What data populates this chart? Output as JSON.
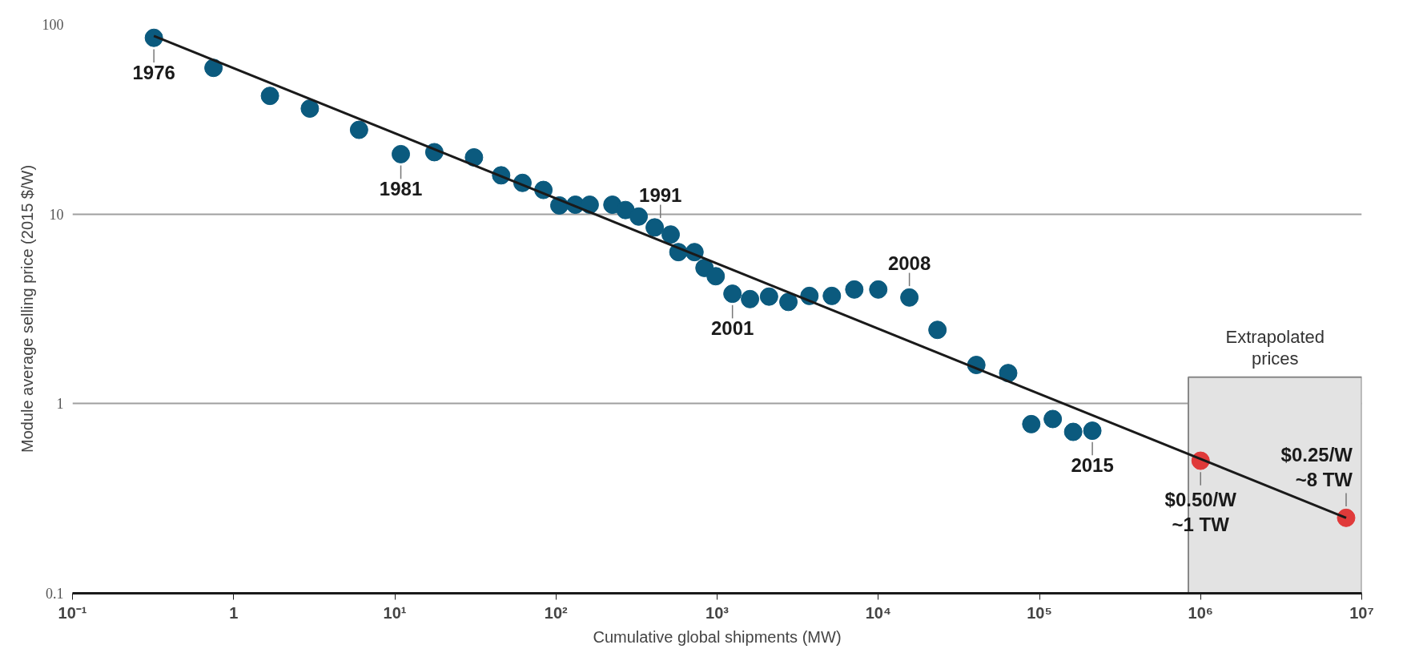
{
  "chart_data": {
    "type": "scatter",
    "xlabel": "Cumulative global shipments (MW)",
    "ylabel": "Module average selling price (2015 $/W)",
    "log": "xy",
    "xlim": [
      0.1,
      10000000
    ],
    "ylim": [
      0.1,
      100
    ],
    "xticks": [
      {
        "value": 0.1,
        "label": "10⁻¹"
      },
      {
        "value": 1,
        "label": "1"
      },
      {
        "value": 10,
        "label": "10¹"
      },
      {
        "value": 100,
        "label": "10²"
      },
      {
        "value": 1000,
        "label": "10³"
      },
      {
        "value": 10000,
        "label": "10⁴"
      },
      {
        "value": 100000,
        "label": "10⁵"
      },
      {
        "value": 1000000,
        "label": "10⁶"
      },
      {
        "value": 10000000,
        "label": "10⁷"
      }
    ],
    "yticks": [
      0.1,
      1,
      10,
      100
    ],
    "grid": "y",
    "marker": "circle",
    "series": [
      {
        "color": "#0b5a7e",
        "x": [
          0.32,
          0.75,
          1.68,
          2.97,
          6.0,
          10.9,
          17.6,
          31,
          45.7,
          62,
          83.6,
          105,
          132,
          162,
          224,
          270,
          326,
          410,
          515,
          575,
          724,
          835,
          980,
          1245,
          1600,
          2100,
          2770,
          3740,
          5150,
          7100,
          10000,
          15600,
          23300,
          40600,
          64000,
          89000,
          121000,
          162000,
          213000
        ],
        "values": [
          85,
          59,
          42,
          36,
          27.8,
          20.7,
          21.2,
          19.9,
          16.0,
          14.6,
          13.4,
          11.1,
          11.2,
          11.2,
          11.2,
          10.5,
          9.7,
          8.5,
          7.8,
          6.3,
          6.3,
          5.2,
          4.7,
          3.8,
          3.56,
          3.67,
          3.44,
          3.7,
          3.7,
          4.0,
          4.0,
          3.63,
          2.45,
          1.6,
          1.45,
          0.78,
          0.83,
          0.71,
          0.72
        ]
      },
      {
        "color": "#e03a3a",
        "x": [
          1000000,
          8000000
        ],
        "values": [
          0.5,
          0.25
        ]
      },
      {
        "type": "line",
        "marker": "none",
        "color": "#1a1a1a",
        "x": [
          0.32,
          8000000
        ],
        "values": [
          87,
          0.25
        ]
      }
    ],
    "bands": [
      {
        "axis": "x",
        "from": 840000,
        "to": 10000000,
        "label": "Extrapolated prices",
        "color": "#e3e3e3"
      }
    ],
    "annotations": [
      {
        "text": "1976",
        "x": 0.32,
        "y": 85
      },
      {
        "text": "1981",
        "x": 10.9,
        "y": 20.7
      },
      {
        "text": "1991",
        "x": 445,
        "y": 8.3
      },
      {
        "text": "2001",
        "x": 1245,
        "y": 3.8
      },
      {
        "text": "2008",
        "x": 15600,
        "y": 3.63
      },
      {
        "text": "2015",
        "x": 213000,
        "y": 0.72
      },
      {
        "text": "$0.50/W\n~1 TW",
        "x": 1000000,
        "y": 0.5
      },
      {
        "text": "$0.25/W\n~8 TW",
        "x": 8000000,
        "y": 0.25
      }
    ]
  }
}
